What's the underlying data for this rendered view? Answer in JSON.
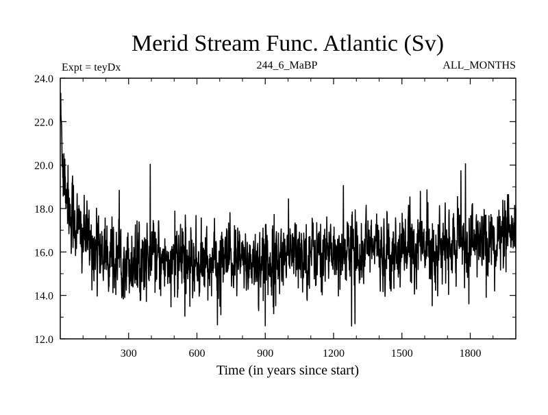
{
  "chart_data": {
    "type": "line",
    "title": "Merid Stream Func. Atlantic (Sv)",
    "subtitle_left": "Expt = teyDx",
    "subtitle_center": "244_6_MaBP",
    "subtitle_right": "ALL_MONTHS",
    "xlabel": "Time (in years since start)",
    "ylabel": "",
    "xlim": [
      0,
      2000
    ],
    "ylim": [
      12.0,
      24.0
    ],
    "x_ticks": [
      300,
      600,
      900,
      1200,
      1500,
      1800
    ],
    "x_tick_labels": [
      "300",
      "600",
      "900",
      "1200",
      "1500",
      "1800"
    ],
    "y_ticks": [
      12.0,
      14.0,
      16.0,
      18.0,
      20.0,
      22.0,
      24.0
    ],
    "y_tick_labels": [
      "12.0",
      "14.0",
      "16.0",
      "18.0",
      "20.0",
      "22.0",
      "24.0"
    ],
    "grid": false,
    "legend": "none",
    "line_color": "#000000",
    "series": [
      {
        "x": [
          0,
          10,
          20,
          30,
          40,
          60,
          80,
          100,
          130,
          160,
          200,
          250,
          300,
          350,
          400,
          450,
          500,
          550,
          600,
          650,
          700,
          750,
          800,
          850,
          900,
          950,
          1000,
          1050,
          1100,
          1150,
          1200,
          1250,
          1300,
          1350,
          1400,
          1450,
          1500,
          1550,
          1600,
          1650,
          1700,
          1750,
          1800,
          1850,
          1900,
          1950,
          2000
        ],
        "values": [
          22.5,
          20.5,
          19.5,
          18.8,
          18.0,
          17.5,
          17.0,
          16.7,
          16.4,
          16.1,
          15.9,
          15.7,
          15.6,
          15.6,
          15.6,
          15.6,
          15.5,
          15.5,
          15.5,
          15.5,
          15.5,
          15.5,
          15.5,
          15.6,
          15.6,
          15.7,
          15.8,
          15.9,
          16.0,
          16.0,
          16.1,
          16.2,
          16.2,
          16.2,
          16.1,
          16.1,
          16.2,
          16.3,
          16.3,
          16.2,
          16.2,
          16.3,
          16.4,
          16.5,
          16.5,
          16.6,
          16.6
        ]
      }
    ]
  }
}
